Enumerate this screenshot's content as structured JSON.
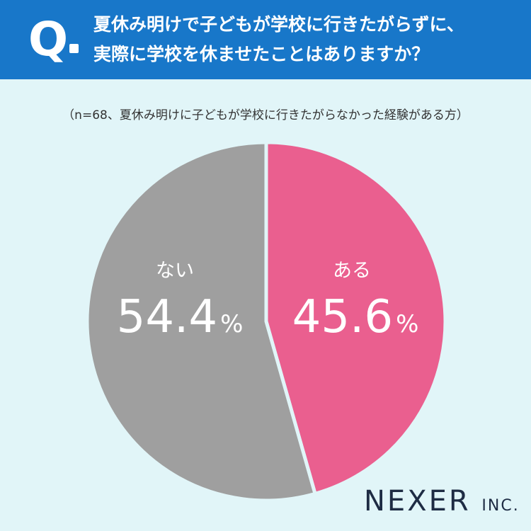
{
  "question": {
    "mark": "Q",
    "line1": "夏休み明けで子どもが学校に行きたがらずに、",
    "line2": "実際に学校を休ませたことはありますか？"
  },
  "sample_note": "（n=68、夏休み明けに子どもが学校に行きたがらなかった経験がある方）",
  "chart_data": {
    "type": "pie",
    "slices": [
      {
        "label": "ある",
        "value": 45.6,
        "value_text": "45.6",
        "unit": "%",
        "color": "#ea5f8f"
      },
      {
        "label": "ない",
        "value": 54.4,
        "value_text": "54.4",
        "unit": "%",
        "color": "#9f9f9f"
      }
    ]
  },
  "brand": {
    "main": "NEXER",
    "suffix": "INC."
  }
}
